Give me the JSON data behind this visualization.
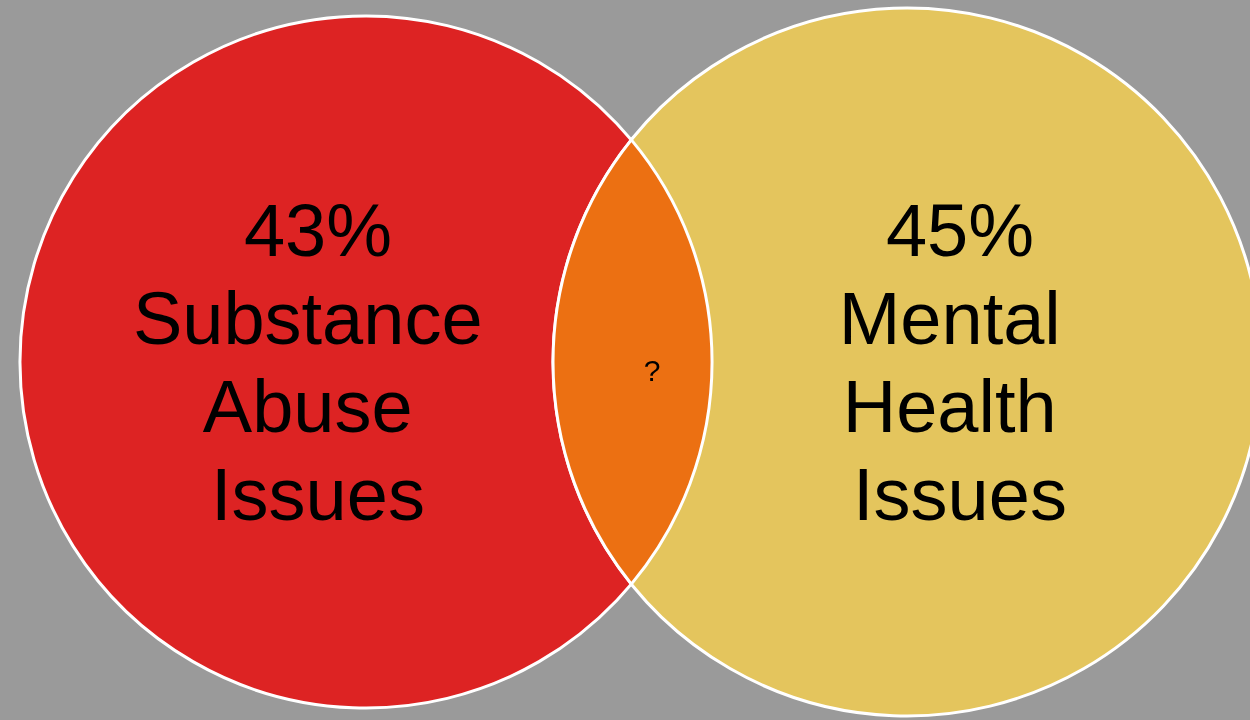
{
  "chart_data": {
    "type": "other",
    "categories": [
      "Substance Abuse Issues",
      "Mental Health Issues",
      null
    ],
    "values": [
      43,
      45,
      null
    ],
    "value_labels": [
      "43%",
      "45%",
      "?"
    ],
    "colors": [
      "#dd2323",
      "#e4c55d",
      "#ec7012"
    ]
  }
}
